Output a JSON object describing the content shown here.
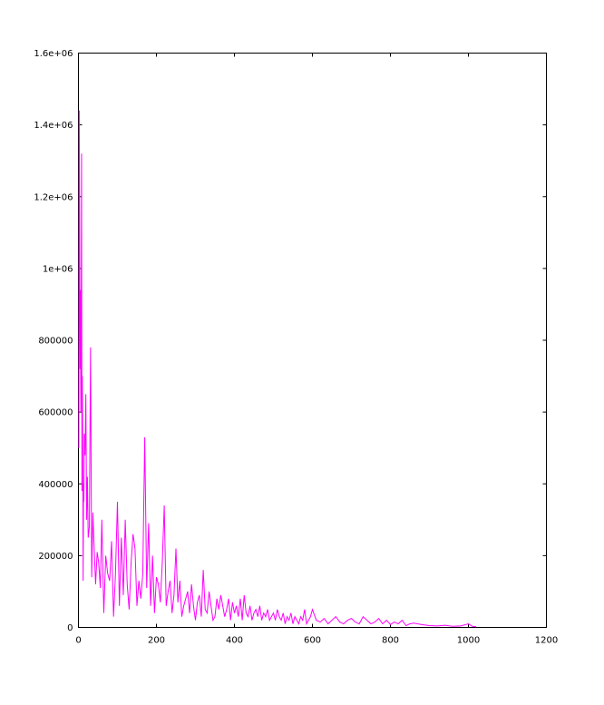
{
  "chart_data": {
    "type": "line",
    "title": "",
    "xlabel": "",
    "ylabel": "",
    "xlim": [
      0,
      1200
    ],
    "ylim": [
      0,
      1600000
    ],
    "x_ticks": [
      0,
      200,
      400,
      600,
      800,
      1000,
      1200
    ],
    "x_tick_labels": [
      "0",
      "200",
      "400",
      "600",
      "800",
      "1000",
      "1200"
    ],
    "y_ticks": [
      0,
      200000,
      400000,
      600000,
      800000,
      1000000,
      1200000,
      1400000,
      1600000
    ],
    "y_tick_labels": [
      "0",
      "200000",
      "400000",
      "600000",
      "800000",
      "1e+06",
      "1.2e+06",
      "1.4e+06",
      "1.6e+06"
    ],
    "grid": false,
    "legend": "none",
    "series": [
      {
        "color": "#ff00ff",
        "x": [
          1,
          2,
          3,
          4,
          5,
          6,
          7,
          8,
          9,
          10,
          11,
          12,
          13,
          14,
          15,
          17,
          19,
          21,
          23,
          25,
          28,
          31,
          34,
          37,
          40,
          44,
          48,
          52,
          56,
          60,
          65,
          70,
          75,
          80,
          85,
          90,
          95,
          100,
          105,
          110,
          115,
          120,
          125,
          130,
          135,
          140,
          145,
          150,
          155,
          160,
          165,
          170,
          175,
          180,
          185,
          190,
          195,
          200,
          205,
          210,
          215,
          220,
          225,
          230,
          235,
          240,
          245,
          250,
          255,
          260,
          265,
          270,
          275,
          280,
          285,
          290,
          295,
          300,
          305,
          310,
          315,
          320,
          325,
          330,
          335,
          340,
          345,
          350,
          355,
          360,
          365,
          370,
          375,
          380,
          385,
          390,
          395,
          400,
          405,
          410,
          415,
          420,
          425,
          430,
          435,
          440,
          445,
          450,
          455,
          460,
          465,
          470,
          475,
          480,
          485,
          490,
          495,
          500,
          505,
          510,
          515,
          520,
          525,
          530,
          535,
          540,
          545,
          550,
          555,
          560,
          565,
          570,
          575,
          580,
          585,
          590,
          595,
          600,
          610,
          620,
          630,
          640,
          650,
          660,
          670,
          680,
          690,
          700,
          710,
          720,
          730,
          740,
          750,
          760,
          770,
          780,
          790,
          800,
          810,
          820,
          830,
          840,
          850,
          860,
          880,
          900,
          920,
          940,
          960,
          980,
          1000,
          1010,
          1020
        ],
        "values": [
          500000,
          1440000,
          1150000,
          720000,
          940000,
          600000,
          820000,
          1320000,
          380000,
          700000,
          500000,
          130000,
          400000,
          350000,
          540000,
          480000,
          650000,
          300000,
          420000,
          250000,
          280000,
          780000,
          140000,
          320000,
          230000,
          120000,
          210000,
          180000,
          110000,
          300000,
          40000,
          200000,
          150000,
          130000,
          240000,
          30000,
          150000,
          350000,
          60000,
          250000,
          90000,
          300000,
          120000,
          50000,
          180000,
          260000,
          220000,
          60000,
          130000,
          80000,
          150000,
          530000,
          110000,
          290000,
          60000,
          200000,
          40000,
          140000,
          120000,
          70000,
          180000,
          340000,
          60000,
          100000,
          130000,
          40000,
          90000,
          220000,
          70000,
          130000,
          30000,
          60000,
          80000,
          100000,
          40000,
          120000,
          60000,
          20000,
          70000,
          90000,
          30000,
          160000,
          50000,
          40000,
          100000,
          60000,
          20000,
          30000,
          80000,
          50000,
          90000,
          60000,
          30000,
          50000,
          80000,
          20000,
          70000,
          40000,
          60000,
          30000,
          80000,
          20000,
          90000,
          40000,
          30000,
          60000,
          20000,
          40000,
          50000,
          30000,
          60000,
          20000,
          40000,
          30000,
          50000,
          20000,
          30000,
          40000,
          20000,
          50000,
          30000,
          20000,
          40000,
          10000,
          30000,
          20000,
          40000,
          10000,
          30000,
          20000,
          10000,
          30000,
          20000,
          50000,
          10000,
          20000,
          30000,
          50000,
          20000,
          15000,
          25000,
          10000,
          20000,
          30000,
          15000,
          10000,
          20000,
          25000,
          15000,
          10000,
          30000,
          20000,
          10000,
          15000,
          25000,
          10000,
          20000,
          8000,
          15000,
          10000,
          20000,
          5000,
          10000,
          12000,
          8000,
          5000,
          4000,
          6000,
          3000,
          4000,
          10000,
          3000,
          2000
        ]
      }
    ]
  }
}
